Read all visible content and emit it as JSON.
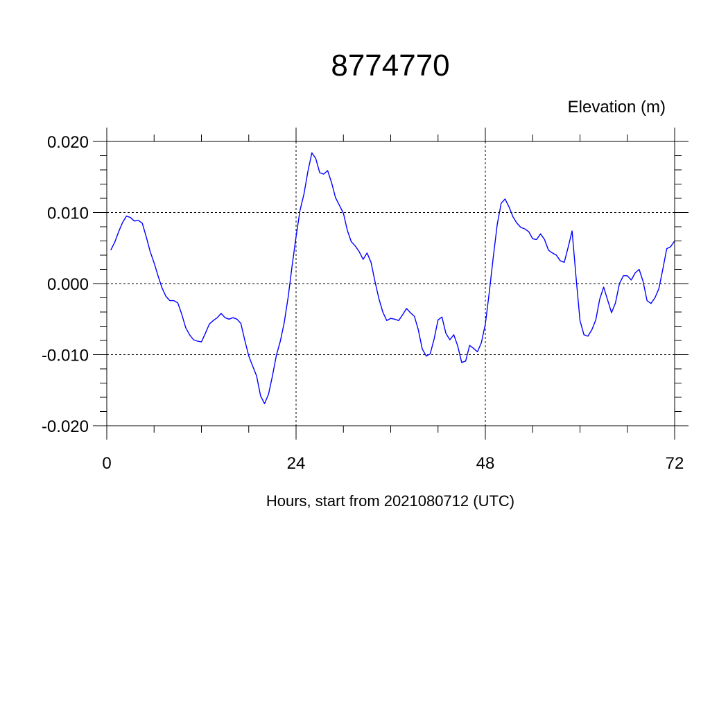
{
  "chart_data": {
    "type": "line",
    "title": "8774770",
    "ylabel": "Elevation (m)",
    "xlabel": "Hours, start from 2021080712 (UTC)",
    "xlim": [
      0,
      72
    ],
    "ylim": [
      -0.02,
      0.02
    ],
    "x_ticks": [
      0,
      24,
      48,
      72
    ],
    "x_tick_labels": [
      "0",
      "24",
      "48",
      "72"
    ],
    "y_ticks": [
      -0.02,
      -0.01,
      0.0,
      0.01,
      0.02
    ],
    "y_tick_labels": [
      "-0.020",
      "-0.010",
      "0.000",
      "0.010",
      "0.020"
    ],
    "grid": true,
    "series": [
      {
        "color": "#0000ff",
        "x": [
          0.5,
          1.0,
          1.5,
          2.0,
          2.5,
          3.0,
          3.5,
          4.0,
          4.5,
          5.0,
          5.5,
          6.0,
          6.5,
          7.0,
          7.5,
          8.0,
          8.5,
          9.0,
          9.5,
          10.0,
          10.5,
          11.0,
          11.5,
          12.0,
          12.5,
          13.0,
          13.5,
          14.0,
          14.5,
          15.0,
          15.5,
          16.0,
          16.5,
          17.0,
          17.5,
          18.0,
          18.5,
          19.0,
          19.5,
          20.0,
          20.5,
          21.0,
          21.5,
          22.0,
          22.5,
          23.0,
          23.5,
          24.0,
          24.5,
          25.0,
          25.5,
          26.0,
          26.5,
          27.0,
          27.5,
          28.0,
          28.5,
          29.0,
          29.5,
          30.0,
          30.5,
          31.0,
          31.5,
          32.0,
          32.5,
          33.0,
          33.5,
          34.0,
          34.5,
          35.0,
          35.5,
          36.0,
          36.5,
          37.0,
          37.5,
          38.0,
          38.5,
          39.0,
          39.5,
          40.0,
          40.5,
          41.0,
          41.5,
          42.0,
          42.5,
          43.0,
          43.5,
          44.0,
          44.5,
          45.0,
          45.5,
          46.0,
          46.5,
          47.0,
          47.5,
          48.0,
          48.5,
          49.0,
          49.5,
          50.0,
          50.5,
          51.0,
          51.5,
          52.0,
          52.5,
          53.0,
          53.5,
          54.0,
          54.5,
          55.0,
          55.5,
          56.0,
          56.5,
          57.0,
          57.5,
          58.0,
          58.5,
          59.0,
          59.5,
          60.0,
          60.5,
          61.0,
          61.5,
          62.0,
          62.5,
          63.0,
          63.5,
          64.0,
          64.5,
          65.0,
          65.5,
          66.0,
          66.5,
          67.0,
          67.5,
          68.0,
          68.5,
          69.0,
          69.5,
          70.0,
          70.5,
          71.0,
          71.5,
          72.0
        ],
        "values": [
          0.0047,
          0.0058,
          0.0073,
          0.0086,
          0.0095,
          0.0093,
          0.0088,
          0.0089,
          0.0085,
          0.0066,
          0.0045,
          0.0029,
          0.0011,
          -0.0006,
          -0.0018,
          -0.0024,
          -0.0024,
          -0.0027,
          -0.0043,
          -0.0062,
          -0.0072,
          -0.0079,
          -0.0081,
          -0.0082,
          -0.007,
          -0.0057,
          -0.0052,
          -0.0048,
          -0.0042,
          -0.0048,
          -0.005,
          -0.0048,
          -0.005,
          -0.0056,
          -0.008,
          -0.0102,
          -0.0116,
          -0.013,
          -0.0158,
          -0.0169,
          -0.0156,
          -0.013,
          -0.0101,
          -0.0081,
          -0.0055,
          -0.0019,
          0.0025,
          0.0066,
          0.0103,
          0.0126,
          0.0158,
          0.0184,
          0.0176,
          0.0156,
          0.0154,
          0.0159,
          0.0142,
          0.0121,
          0.011,
          0.0099,
          0.0075,
          0.0059,
          0.0053,
          0.0045,
          0.0034,
          0.0043,
          0.003,
          0.0003,
          -0.0021,
          -0.004,
          -0.0052,
          -0.0049,
          -0.005,
          -0.0052,
          -0.0044,
          -0.0035,
          -0.0041,
          -0.0046,
          -0.0065,
          -0.0092,
          -0.0102,
          -0.0099,
          -0.0078,
          -0.0051,
          -0.0047,
          -0.007,
          -0.0079,
          -0.0072,
          -0.0088,
          -0.0111,
          -0.0109,
          -0.0087,
          -0.0091,
          -0.0096,
          -0.0083,
          -0.0057,
          -0.0012,
          0.0037,
          0.0083,
          0.0113,
          0.0119,
          0.0108,
          0.0094,
          0.0085,
          0.0079,
          0.0077,
          0.0073,
          0.0063,
          0.0062,
          0.007,
          0.0062,
          0.0047,
          0.0043,
          0.004,
          0.0032,
          0.003,
          0.0051,
          0.0074,
          0.0009,
          -0.0052,
          -0.0072,
          -0.0074,
          -0.0065,
          -0.0051,
          -0.0022,
          -0.0005,
          -0.0023,
          -0.0041,
          -0.0027,
          0.0,
          0.0011,
          0.0011,
          0.0005,
          0.0015,
          0.002,
          0.0003,
          -0.0024,
          -0.0028,
          -0.002,
          -0.0007,
          0.002,
          0.0049,
          0.0052,
          0.006
        ]
      }
    ]
  }
}
